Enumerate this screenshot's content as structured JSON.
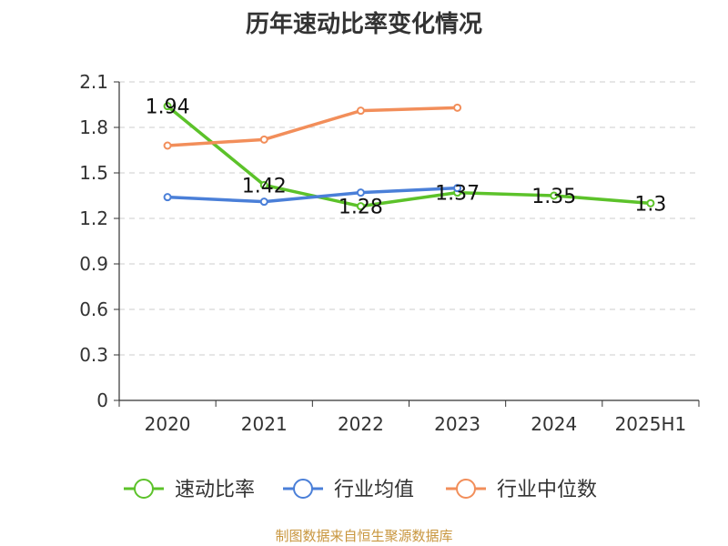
{
  "chart_data": {
    "type": "line",
    "title": "历年速动比率变化情况",
    "categories": [
      "2020",
      "2021",
      "2022",
      "2023",
      "2024",
      "2025H1"
    ],
    "y_ticks": [
      "0",
      "0.3",
      "0.6",
      "0.9",
      "1.2",
      "1.5",
      "1.8",
      "2.1"
    ],
    "ylim": [
      0,
      2.1
    ],
    "grid": true,
    "legend_position": "bottom",
    "series": [
      {
        "name": "速动比率",
        "color": "#5cc22a",
        "values": [
          1.94,
          1.42,
          1.28,
          1.37,
          1.35,
          1.3
        ],
        "labels": [
          "1.94",
          "1.42",
          "1.28",
          "1.37",
          "1.35",
          "1.3"
        ]
      },
      {
        "name": "行业均值",
        "color": "#4a7fd8",
        "values": [
          1.34,
          1.31,
          1.37,
          1.4,
          null,
          null
        ]
      },
      {
        "name": "行业中位数",
        "color": "#f28e5a",
        "values": [
          1.68,
          1.72,
          1.91,
          1.93,
          null,
          null
        ]
      }
    ]
  },
  "source": "制图数据来自恒生聚源数据库"
}
